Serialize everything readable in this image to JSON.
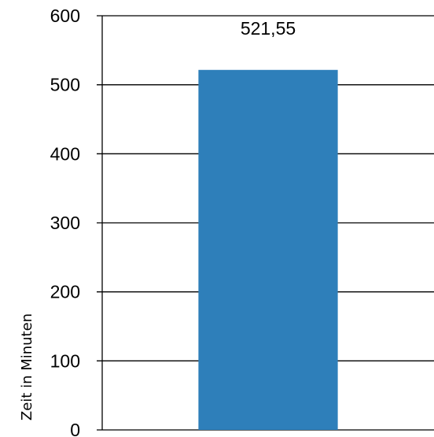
{
  "chart_data": {
    "type": "bar",
    "categories": [
      ""
    ],
    "values": [
      521.55
    ],
    "data_labels": [
      "521,55"
    ],
    "title": "",
    "xlabel": "",
    "ylabel": "Zeit in Minuten",
    "ylim": [
      0,
      600
    ],
    "yticks": [
      0,
      100,
      200,
      300,
      400,
      500,
      600
    ],
    "ytick_labels": [
      "0",
      "100",
      "200",
      "300",
      "400",
      "500",
      "600"
    ],
    "grid": true,
    "legend": "none",
    "colors": {
      "bar": "#2E7FBA",
      "grid": "#000000",
      "text": "#000000"
    }
  }
}
